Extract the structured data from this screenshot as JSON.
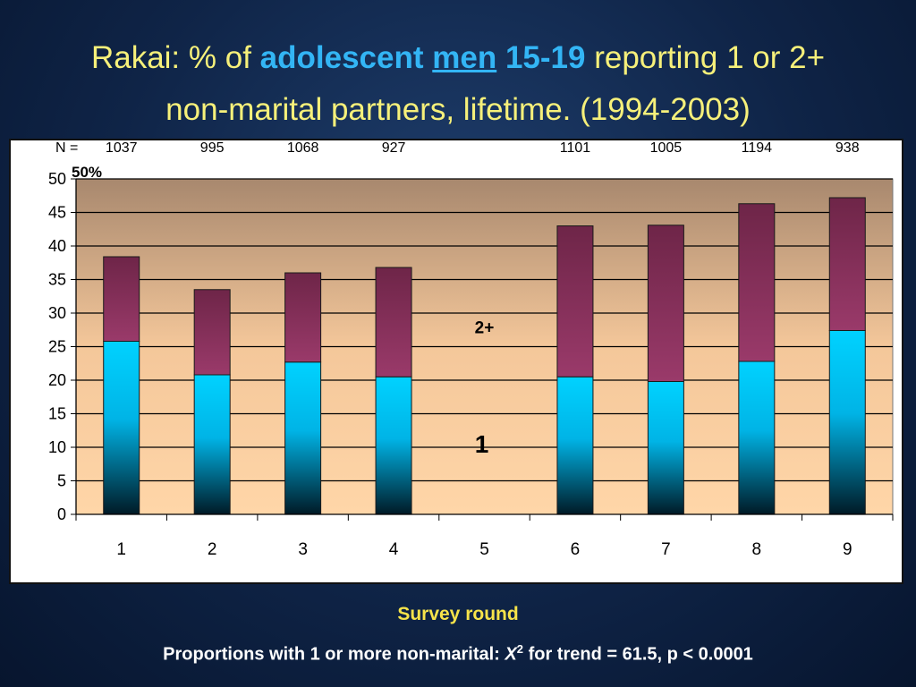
{
  "title": {
    "part1": "Rakai: % of",
    "adolescent": "adolescent",
    "men": "men",
    "ages": "15-19",
    "part2": "reporting 1 or 2+",
    "line2": "non-marital partners, lifetime.  (1994-2003)"
  },
  "footnote": {
    "prefix": "Proportions with 1 or more non-marital:",
    "symbol": "X",
    "superscript": "2",
    "suffix": "for trend = 61.5, p < 0.0001"
  },
  "chart_data": {
    "type": "bar",
    "stacked": true,
    "categories": [
      "1",
      "2",
      "3",
      "4",
      "5",
      "6",
      "7",
      "8",
      "9"
    ],
    "series": [
      {
        "name": "1",
        "values": [
          25.8,
          20.8,
          22.7,
          20.5,
          null,
          20.5,
          19.8,
          22.8,
          27.4
        ]
      },
      {
        "name": "2+",
        "values": [
          12.6,
          12.7,
          13.3,
          16.3,
          null,
          22.5,
          23.3,
          23.5,
          19.8
        ]
      }
    ],
    "n_label": "N =",
    "n_values": [
      "1037",
      "995",
      "1068",
      "927",
      "",
      "1101",
      "1005",
      "1194",
      "938"
    ],
    "xlabel": "Survey round",
    "ylabel": "",
    "ylim": [
      0,
      50
    ],
    "yticks": [
      0,
      5,
      10,
      15,
      20,
      25,
      30,
      35,
      40,
      45,
      50
    ],
    "annotations": {
      "max_label": "50%",
      "upper_label": "2+",
      "lower_label": "1"
    },
    "colors": {
      "one_partner": "#00c8ff",
      "two_plus": "#8a2f5e"
    },
    "grid": true
  }
}
